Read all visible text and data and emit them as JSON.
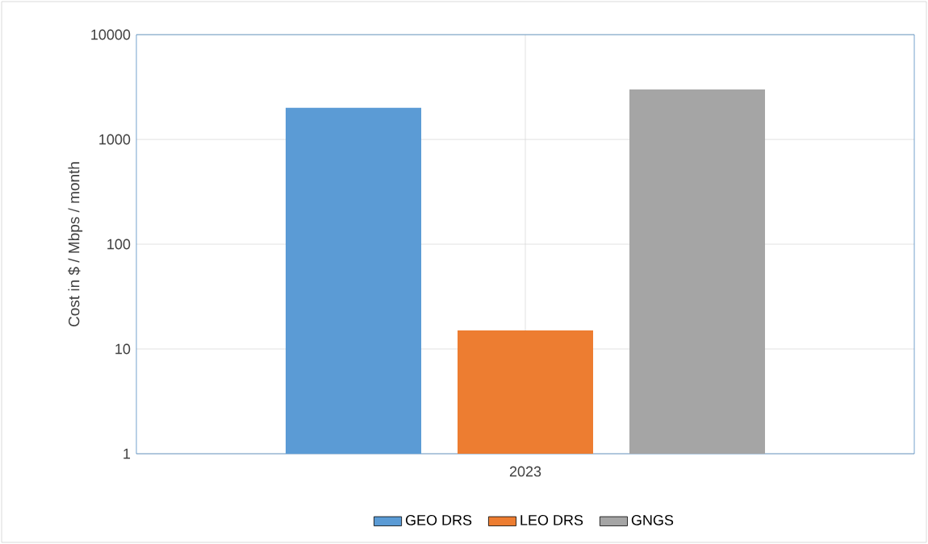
{
  "chart_data": {
    "type": "bar",
    "ylabel": "Cost in $ / Mbps / month",
    "categories": [
      "2023"
    ],
    "series": [
      {
        "name": "GEO DRS",
        "color": "#5b9bd5",
        "values": [
          2000
        ]
      },
      {
        "name": "LEO DRS",
        "color": "#ed7d31",
        "values": [
          15
        ]
      },
      {
        "name": "GNGS",
        "color": "#a5a5a5",
        "values": [
          3000
        ]
      }
    ],
    "log": true,
    "ylim": [
      1,
      10000
    ],
    "yticks": [
      1,
      10,
      100,
      1000,
      10000
    ],
    "grid": true,
    "legend": "bottom"
  }
}
